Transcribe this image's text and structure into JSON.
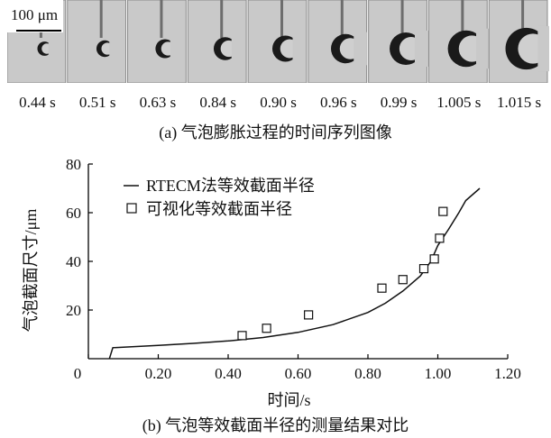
{
  "image_strip": {
    "scale_bar_label": "100 μm",
    "frame_times": [
      "0.44 s",
      "0.51 s",
      "0.63 s",
      "0.84 s",
      "0.90 s",
      "0.96 s",
      "0.99 s",
      "1.005 s",
      "1.015 s"
    ],
    "caption": "(a) 气泡膨胀过程的时间序列图像"
  },
  "chart_data": {
    "type": "line",
    "ylabel": "气泡截面尺寸/μm",
    "xlabel": "时间/s",
    "xlim": [
      0,
      1.2
    ],
    "ylim": [
      0,
      80
    ],
    "xticks": [
      "0",
      "0.20",
      "0.40",
      "0.60",
      "0.80",
      "1.00",
      "1.20"
    ],
    "yticks": [
      "20",
      "40",
      "60",
      "80"
    ],
    "legend_position": "top-left",
    "series": [
      {
        "name": "RTECM法等效截面半径",
        "style": "line",
        "x": [
          0.06,
          0.07,
          0.2,
          0.3,
          0.4,
          0.5,
          0.6,
          0.7,
          0.8,
          0.85,
          0.9,
          0.95,
          0.98,
          1.0,
          1.03,
          1.06,
          1.08,
          1.12
        ],
        "y": [
          0,
          4.5,
          5.5,
          6.3,
          7.3,
          8.7,
          10.8,
          14.0,
          19.0,
          22.8,
          27.8,
          34.0,
          40.0,
          46.5,
          53.0,
          60.0,
          65.0,
          70.0
        ]
      },
      {
        "name": "可视化等效截面半径",
        "style": "square-marker",
        "x": [
          0.44,
          0.51,
          0.63,
          0.84,
          0.9,
          0.96,
          0.99,
          1.005,
          1.015
        ],
        "y": [
          9.5,
          12.5,
          18.0,
          29.0,
          32.5,
          37.0,
          41.0,
          49.5,
          60.5
        ]
      }
    ],
    "caption": "(b) 气泡等效截面半径的测量结果对比"
  }
}
